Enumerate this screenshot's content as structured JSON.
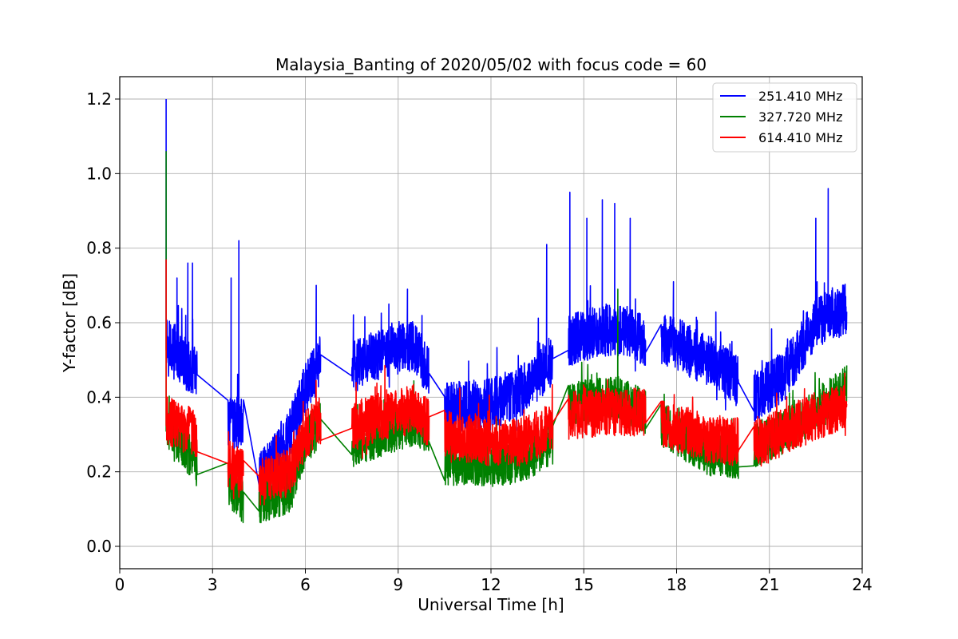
{
  "chart_data": {
    "type": "line",
    "title": "Malaysia_Banting of 2020/05/02 with focus code = 60",
    "xlabel": "Universal Time [h]",
    "ylabel": "Y-factor [dB]",
    "xlim": [
      0,
      24
    ],
    "ylim": [
      -0.06,
      1.26
    ],
    "xticks": [
      0,
      3,
      6,
      9,
      12,
      15,
      18,
      21,
      24
    ],
    "xtick_labels": [
      "0",
      "3",
      "6",
      "9",
      "12",
      "15",
      "18",
      "21",
      "24"
    ],
    "yticks": [
      0.0,
      0.2,
      0.4,
      0.6,
      0.8,
      1.0,
      1.2
    ],
    "ytick_labels": [
      "0.0",
      "0.2",
      "0.4",
      "0.6",
      "0.8",
      "1.0",
      "1.2"
    ],
    "grid": true,
    "legend_position": "top-right",
    "segments": [
      [
        1.5,
        2.5
      ],
      [
        3.5,
        4.0
      ],
      [
        4.5,
        6.5
      ],
      [
        7.5,
        10.0
      ],
      [
        10.5,
        14.0
      ],
      [
        14.5,
        17.0
      ],
      [
        17.5,
        20.0
      ],
      [
        20.5,
        23.5
      ]
    ],
    "series": [
      {
        "name": "251.410 MHz",
        "color": "#0000ff",
        "baseline": [
          [
            1.5,
            0.56
          ],
          [
            2.0,
            0.5
          ],
          [
            2.5,
            0.46
          ],
          [
            3.5,
            0.33
          ],
          [
            4.0,
            0.33
          ],
          [
            4.5,
            0.18
          ],
          [
            5.5,
            0.3
          ],
          [
            6.0,
            0.42
          ],
          [
            6.5,
            0.5
          ],
          [
            7.5,
            0.48
          ],
          [
            8.5,
            0.52
          ],
          [
            9.5,
            0.54
          ],
          [
            10.0,
            0.46
          ],
          [
            10.5,
            0.37
          ],
          [
            12.0,
            0.38
          ],
          [
            13.0,
            0.42
          ],
          [
            14.0,
            0.5
          ],
          [
            14.5,
            0.55
          ],
          [
            15.5,
            0.58
          ],
          [
            16.5,
            0.58
          ],
          [
            17.0,
            0.55
          ],
          [
            17.5,
            0.56
          ],
          [
            19.0,
            0.5
          ],
          [
            20.0,
            0.44
          ],
          [
            20.5,
            0.4
          ],
          [
            21.5,
            0.46
          ],
          [
            22.5,
            0.6
          ],
          [
            23.5,
            0.64
          ]
        ],
        "spikes": [
          [
            1.5,
            1.2
          ],
          [
            1.85,
            0.72
          ],
          [
            2.2,
            0.76
          ],
          [
            2.35,
            0.76
          ],
          [
            3.6,
            0.72
          ],
          [
            3.85,
            0.82
          ],
          [
            6.35,
            0.7
          ],
          [
            8.7,
            0.65
          ],
          [
            9.3,
            0.69
          ],
          [
            13.8,
            0.81
          ],
          [
            14.55,
            0.95
          ],
          [
            15.1,
            0.88
          ],
          [
            15.6,
            0.93
          ],
          [
            16.0,
            0.92
          ],
          [
            16.5,
            0.88
          ],
          [
            17.9,
            0.71
          ],
          [
            22.5,
            0.88
          ],
          [
            22.9,
            0.96
          ]
        ]
      },
      {
        "name": "327.720 MHz",
        "color": "#008000",
        "baseline": [
          [
            1.5,
            0.33
          ],
          [
            2.5,
            0.22
          ],
          [
            3.5,
            0.17
          ],
          [
            4.0,
            0.12
          ],
          [
            4.5,
            0.12
          ],
          [
            5.5,
            0.15
          ],
          [
            6.0,
            0.28
          ],
          [
            6.5,
            0.33
          ],
          [
            7.5,
            0.27
          ],
          [
            8.5,
            0.3
          ],
          [
            9.5,
            0.33
          ],
          [
            10.0,
            0.3
          ],
          [
            10.5,
            0.22
          ],
          [
            12.0,
            0.22
          ],
          [
            13.0,
            0.23
          ],
          [
            14.0,
            0.28
          ],
          [
            14.5,
            0.38
          ],
          [
            16.0,
            0.4
          ],
          [
            17.0,
            0.36
          ],
          [
            17.5,
            0.33
          ],
          [
            19.0,
            0.25
          ],
          [
            20.0,
            0.24
          ],
          [
            20.5,
            0.27
          ],
          [
            22.0,
            0.33
          ],
          [
            23.5,
            0.43
          ]
        ],
        "spikes": [
          [
            1.5,
            1.06
          ],
          [
            16.1,
            0.69
          ]
        ]
      },
      {
        "name": "614.410 MHz",
        "color": "#ff0000",
        "baseline": [
          [
            1.5,
            0.34
          ],
          [
            2.5,
            0.3
          ],
          [
            3.5,
            0.22
          ],
          [
            4.0,
            0.2
          ],
          [
            4.5,
            0.17
          ],
          [
            5.5,
            0.2
          ],
          [
            6.0,
            0.3
          ],
          [
            6.5,
            0.34
          ],
          [
            7.5,
            0.32
          ],
          [
            8.5,
            0.35
          ],
          [
            9.5,
            0.37
          ],
          [
            10.0,
            0.33
          ],
          [
            10.5,
            0.3
          ],
          [
            12.0,
            0.28
          ],
          [
            13.0,
            0.28
          ],
          [
            14.0,
            0.32
          ],
          [
            14.5,
            0.35
          ],
          [
            16.0,
            0.36
          ],
          [
            17.0,
            0.36
          ],
          [
            17.5,
            0.33
          ],
          [
            19.0,
            0.29
          ],
          [
            20.0,
            0.28
          ],
          [
            20.5,
            0.27
          ],
          [
            22.0,
            0.33
          ],
          [
            23.5,
            0.38
          ]
        ],
        "spikes": [
          [
            1.5,
            0.77
          ]
        ]
      }
    ]
  }
}
